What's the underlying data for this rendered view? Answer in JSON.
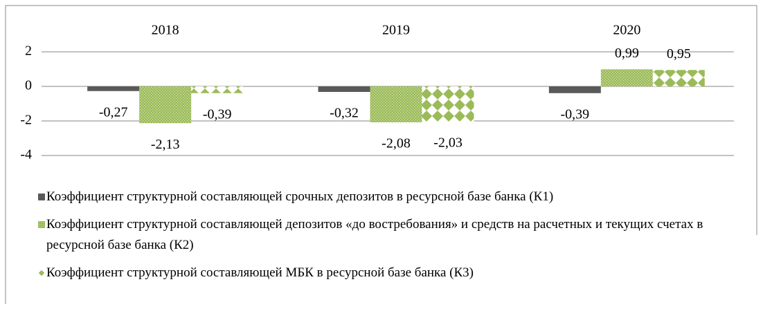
{
  "chart_data": {
    "type": "bar",
    "categories": [
      "2018",
      "2019",
      "2020"
    ],
    "series": [
      {
        "name": "Коэффициент структурной составляющей срочных депозитов в ресурсной базе банка (К1)",
        "color": "#595959",
        "pattern": "solid",
        "values": [
          -0.27,
          -0.32,
          -0.39
        ],
        "value_labels": [
          "-0,27",
          "-0,32",
          "-0,39"
        ]
      },
      {
        "name": "Коэффициент структурной составляющей депозитов «до востребования» и средств на расчетных и текущих счетах в ресурсной базе банка (К2)",
        "color": "#9bbb59",
        "pattern": "dots",
        "values": [
          -2.13,
          -2.08,
          0.99
        ],
        "value_labels": [
          "-2,13",
          "-2,08",
          "0,99"
        ]
      },
      {
        "name": "Коэффициент структурной составляющей МБК в ресурсной базе банка (К3)",
        "color": "#9bbb59",
        "pattern": "diamonds",
        "values": [
          -0.39,
          -2.03,
          0.95
        ],
        "value_labels": [
          "-0,39",
          "-2,03",
          "0,95"
        ]
      }
    ],
    "ylim": [
      -4,
      2
    ],
    "yticks": [
      2,
      0,
      -2,
      -4
    ],
    "grid": true,
    "legend": "bottom"
  }
}
